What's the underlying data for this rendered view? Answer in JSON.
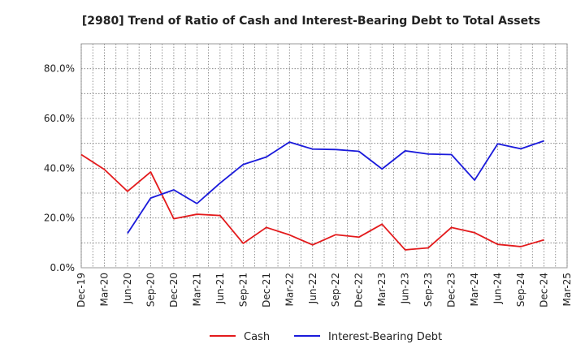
{
  "chart_data": {
    "type": "line",
    "title": "[2980]  Trend of Ratio of Cash and Interest-Bearing Debt to Total Assets",
    "xlabel": "",
    "ylabel": "",
    "x_ticks": [
      "Dec-19",
      "Mar-20",
      "Jun-20",
      "Sep-20",
      "Dec-20",
      "Mar-21",
      "Jun-21",
      "Sep-21",
      "Dec-21",
      "Mar-22",
      "Jun-22",
      "Sep-22",
      "Dec-22",
      "Mar-23",
      "Jun-23",
      "Sep-23",
      "Dec-23",
      "Mar-24",
      "Jun-24",
      "Sep-24",
      "Dec-24",
      "Mar-25"
    ],
    "y_ticks": [
      "0.0%",
      "20.0%",
      "40.0%",
      "60.0%",
      "80.0%"
    ],
    "ylim": [
      0,
      90
    ],
    "grid": true,
    "legend_position": "bottom",
    "series": [
      {
        "name": "Cash",
        "color": "#e31a1c",
        "values": [
          45.5,
          39.5,
          30.7,
          38.5,
          19.7,
          21.5,
          21.0,
          9.8,
          16.2,
          13.2,
          9.2,
          13.3,
          12.3,
          17.5,
          7.2,
          8.0,
          16.2,
          14.1,
          9.4,
          8.5,
          11.2,
          null
        ]
      },
      {
        "name": "Interest-Bearing Debt",
        "color": "#1a1adb",
        "values": [
          null,
          null,
          13.8,
          28.0,
          31.3,
          25.8,
          34.0,
          41.5,
          44.5,
          50.5,
          47.7,
          47.5,
          46.8,
          39.7,
          47.0,
          45.7,
          45.5,
          35.2,
          49.8,
          47.8,
          51.0,
          null
        ]
      }
    ]
  }
}
